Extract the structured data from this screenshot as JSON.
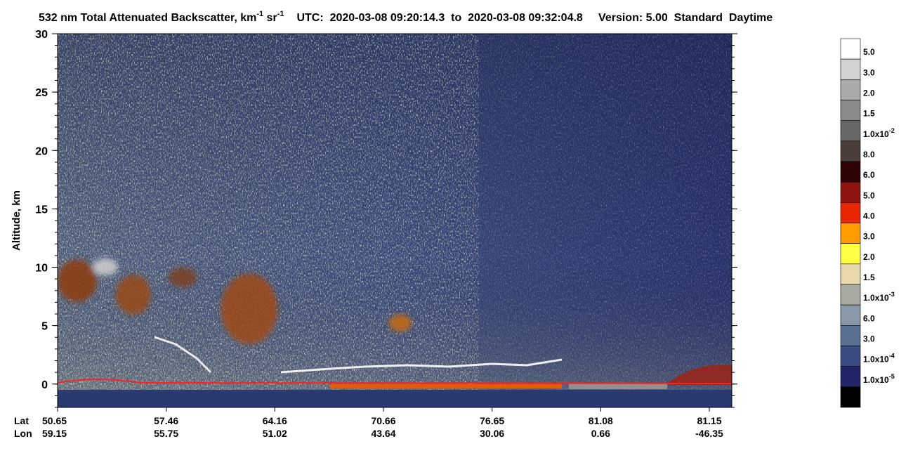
{
  "chart_data": {
    "type": "heatmap",
    "title": [
      {
        "text": "532 nm Total Attenuated Backscatter, km",
        "sup": "-1"
      },
      {
        "text": " sr",
        "sup": "-1"
      }
    ],
    "subtitle": "UTC:  2020-03-08 09:20:14.3  to  2020-03-08 09:32:04.8     Version: 5.00  Standard  Daytime",
    "ylabel": "Altitude, km",
    "ylim": [
      -2,
      30
    ],
    "yticks": [
      0,
      5,
      10,
      15,
      20,
      25,
      30
    ],
    "x_rows": [
      {
        "name": "Lat",
        "labels": [
          "50.65",
          "57.46",
          "64.16",
          "70.66",
          "76.65",
          "81.08",
          "81.15"
        ]
      },
      {
        "name": "Lon",
        "labels": [
          "59.15",
          "55.75",
          "51.02",
          "43.64",
          "30.06",
          "0.66",
          "-46.35"
        ]
      }
    ],
    "colorbar": {
      "colors": [
        "#ffffff",
        "#d2d2d2",
        "#aaaaaa",
        "#8a8a8a",
        "#666666",
        "#4a3e3a",
        "#300404",
        "#8e1410",
        "#e82600",
        "#ff9c00",
        "#ffff44",
        "#e8d8ac",
        "#a8aaa2",
        "#8898a8",
        "#5a7092",
        "#3a4c82",
        "#22246a",
        "#000000"
      ],
      "labels": [
        {
          "text": "5.0"
        },
        {
          "text": "3.0"
        },
        {
          "text": "2.0"
        },
        {
          "text": "1.5"
        },
        {
          "text": "1.0x10",
          "sup": "-2"
        },
        {
          "text": "8.0"
        },
        {
          "text": "6.0"
        },
        {
          "text": "5.0"
        },
        {
          "text": "4.0"
        },
        {
          "text": "3.0"
        },
        {
          "text": "2.0"
        },
        {
          "text": "1.5"
        },
        {
          "text": "1.0x10",
          "sup": "-3"
        },
        {
          "text": "6.0"
        },
        {
          "text": "3.0"
        },
        {
          "text": "1.0x10",
          "sup": "-4"
        },
        {
          "text": "1.0x10",
          "sup": "-5"
        }
      ]
    }
  }
}
